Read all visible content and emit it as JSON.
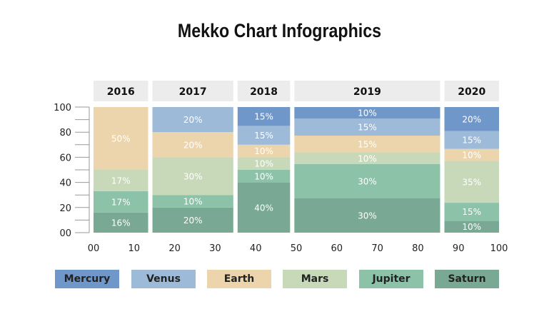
{
  "title": "Mekko Chart Infographics",
  "chart_data": {
    "type": "bar",
    "subtype": "mekko",
    "title": "Mekko Chart Infographics",
    "categories": [
      "2016",
      "2017",
      "2018",
      "2019",
      "2020"
    ],
    "category_widths": [
      14,
      21,
      14,
      37,
      14
    ],
    "series": [
      {
        "name": "Saturn",
        "color": "#79a994",
        "values": [
          16,
          20,
          40,
          30,
          10
        ]
      },
      {
        "name": "Jupiter",
        "color": "#8cc2a8",
        "values": [
          17,
          10,
          10,
          30,
          15
        ]
      },
      {
        "name": "Mars",
        "color": "#c8d9ba",
        "values": [
          17,
          30,
          10,
          10,
          35
        ]
      },
      {
        "name": "Earth",
        "color": "#ecd5ad",
        "values": [
          50,
          20,
          10,
          15,
          10
        ]
      },
      {
        "name": "Venus",
        "color": "#9dbad9",
        "values": [
          null,
          20,
          15,
          15,
          15
        ]
      },
      {
        "name": "Mercury",
        "color": "#6f97c9",
        "values": [
          null,
          null,
          15,
          10,
          20
        ]
      }
    ],
    "y_ticks": [
      "00",
      "20",
      "40",
      "60",
      "80",
      "100"
    ],
    "x_ticks": [
      "00",
      "10",
      "20",
      "30",
      "40",
      "50",
      "60",
      "70",
      "80",
      "90",
      "100"
    ],
    "ylim": [
      0,
      100
    ],
    "xlim": [
      0,
      100
    ],
    "legend_position": "bottom",
    "legend_order": [
      "Mercury",
      "Venus",
      "Earth",
      "Mars",
      "Jupiter",
      "Saturn"
    ],
    "grid": false
  }
}
